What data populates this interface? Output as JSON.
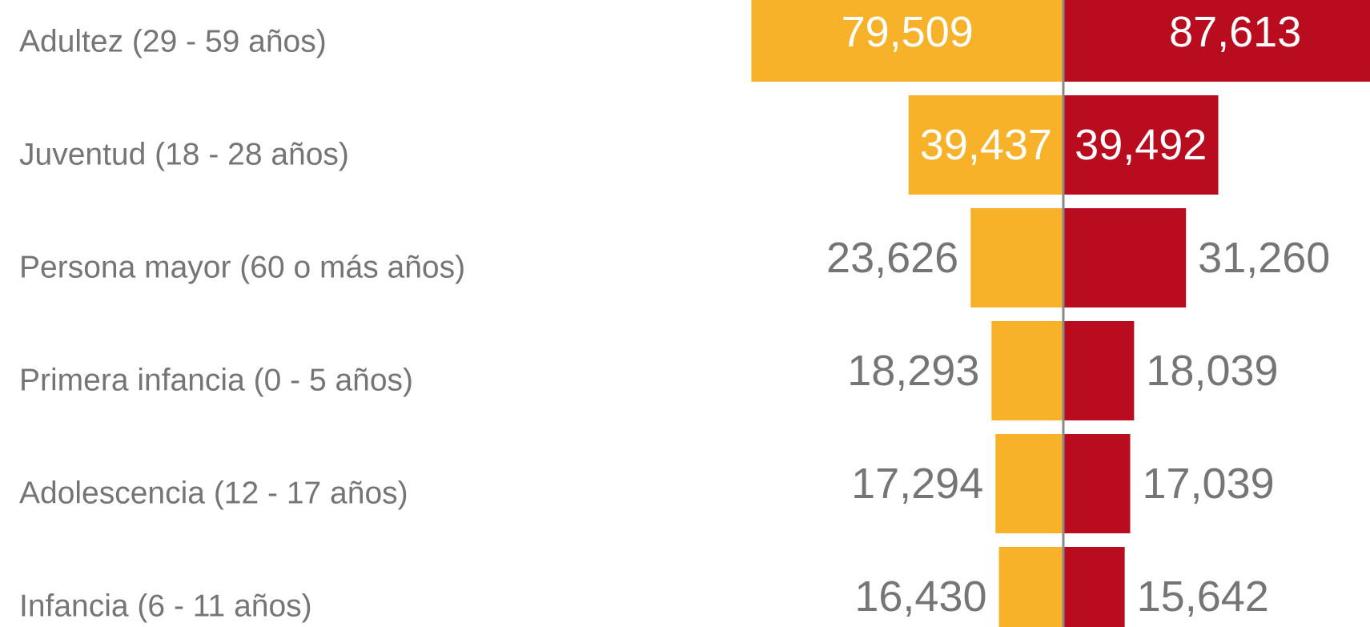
{
  "chart_data": {
    "type": "butterfly",
    "categories": [
      "Adultez (29 - 59 años)",
      "Juventud (18 - 28 años)",
      "Persona mayor (60 o más años)",
      "Primera infancia (0 - 5 años)",
      "Adolescencia (12 - 17 años)",
      "Infancia (6 - 11 años)"
    ],
    "series": [
      {
        "color": "#f7b229",
        "values": [
          79509,
          39437,
          23626,
          18293,
          17294,
          16430
        ],
        "value_labels": [
          "79,509",
          "39,437",
          "23,626",
          "18,293",
          "17,294",
          "16,430"
        ]
      },
      {
        "color": "#b90c1e",
        "values": [
          87613,
          39492,
          31260,
          18039,
          17039,
          15642
        ],
        "value_labels": [
          "87,613",
          "39,492",
          "31,260",
          "18,039",
          "17,039",
          "15,642"
        ]
      }
    ]
  }
}
